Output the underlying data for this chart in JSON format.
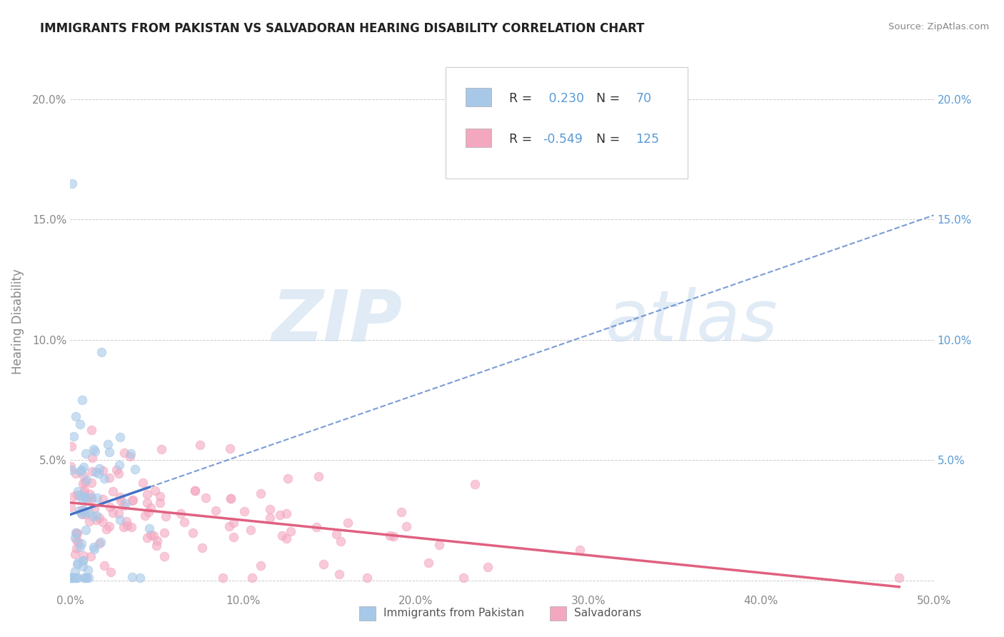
{
  "title": "IMMIGRANTS FROM PAKISTAN VS SALVADORAN HEARING DISABILITY CORRELATION CHART",
  "source": "Source: ZipAtlas.com",
  "xlabel_blue": "Immigrants from Pakistan",
  "xlabel_pink": "Salvadorans",
  "ylabel": "Hearing Disability",
  "xlim": [
    0.0,
    0.5
  ],
  "ylim": [
    -0.005,
    0.22
  ],
  "xticks": [
    0.0,
    0.1,
    0.2,
    0.3,
    0.4,
    0.5
  ],
  "yticks": [
    0.0,
    0.05,
    0.1,
    0.15,
    0.2
  ],
  "ytick_labels_left": [
    "",
    "5.0%",
    "10.0%",
    "15.0%",
    "20.0%"
  ],
  "ytick_labels_right": [
    "",
    "5.0%",
    "10.0%",
    "15.0%",
    "20.0%"
  ],
  "xtick_labels": [
    "0.0%",
    "10.0%",
    "20.0%",
    "30.0%",
    "40.0%",
    "50.0%"
  ],
  "blue_R": 0.23,
  "blue_N": 70,
  "pink_R": -0.549,
  "pink_N": 125,
  "blue_color": "#A8C8E8",
  "pink_color": "#F4A8C0",
  "blue_line_color": "#4472C4",
  "pink_line_color": "#E06080",
  "watermark_zip": "ZIP",
  "watermark_atlas": "atlas",
  "title_color": "#222222",
  "axis_color": "#5B9BD5",
  "background_color": "#FFFFFF",
  "grid_color": "#CCCCCC",
  "tick_color": "#888888"
}
